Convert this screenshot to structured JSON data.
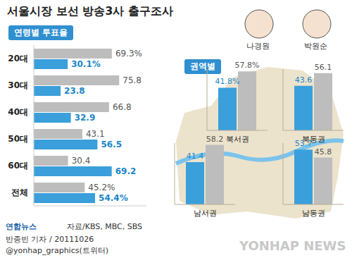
{
  "title": "서울시장 보선 방송3사 출구조사",
  "chart_data": [
    {
      "type": "bar",
      "orientation": "horizontal",
      "title": "연령별 투표율",
      "categories": [
        "20대",
        "30대",
        "40대",
        "50대",
        "60대",
        "전체"
      ],
      "series": [
        {
          "name": "박원순",
          "color": "#bdbdbd",
          "values": [
            69.3,
            75.8,
            66.8,
            43.1,
            30.4,
            45.2
          ],
          "value_labels": [
            "69.3%",
            "75.8",
            "66.8",
            "43.1",
            "30.4",
            "45.2%"
          ]
        },
        {
          "name": "나경원",
          "color": "#3a9fdb",
          "values": [
            30.1,
            23.8,
            32.9,
            56.5,
            69.2,
            54.4
          ],
          "value_labels": [
            "30.1%",
            "23.8",
            "32.9",
            "56.5",
            "69.2",
            "54.4%"
          ]
        }
      ],
      "xlim": [
        0,
        100
      ],
      "data_labels": true,
      "tick_labels": "y"
    },
    {
      "type": "bar",
      "title": "권역별",
      "categories": [
        "북서권",
        "북동권",
        "남서권",
        "남동권"
      ],
      "series": [
        {
          "name": "나경원",
          "color": "#3a9fdb",
          "values": [
            41.8,
            43.6,
            41.4,
            53.7
          ],
          "value_labels": [
            "41.8%",
            "43.6",
            "41.4",
            "53.7"
          ]
        },
        {
          "name": "박원순",
          "color": "#bdbdbd",
          "values": [
            57.8,
            56.1,
            58.2,
            45.8
          ],
          "value_labels": [
            "57.8%",
            "56.1",
            "58.2",
            "45.8"
          ]
        }
      ],
      "ylim": [
        0,
        60
      ],
      "data_labels": true,
      "tick_labels": "x"
    }
  ],
  "source": "자료/KBS, MBC, SBS",
  "credit": "반종빈 기자 / 20111026",
  "twitter": "@yonhap_graphics(트위터)",
  "logo": "연합뉴스",
  "watermark": "YONHAP NEWS"
}
